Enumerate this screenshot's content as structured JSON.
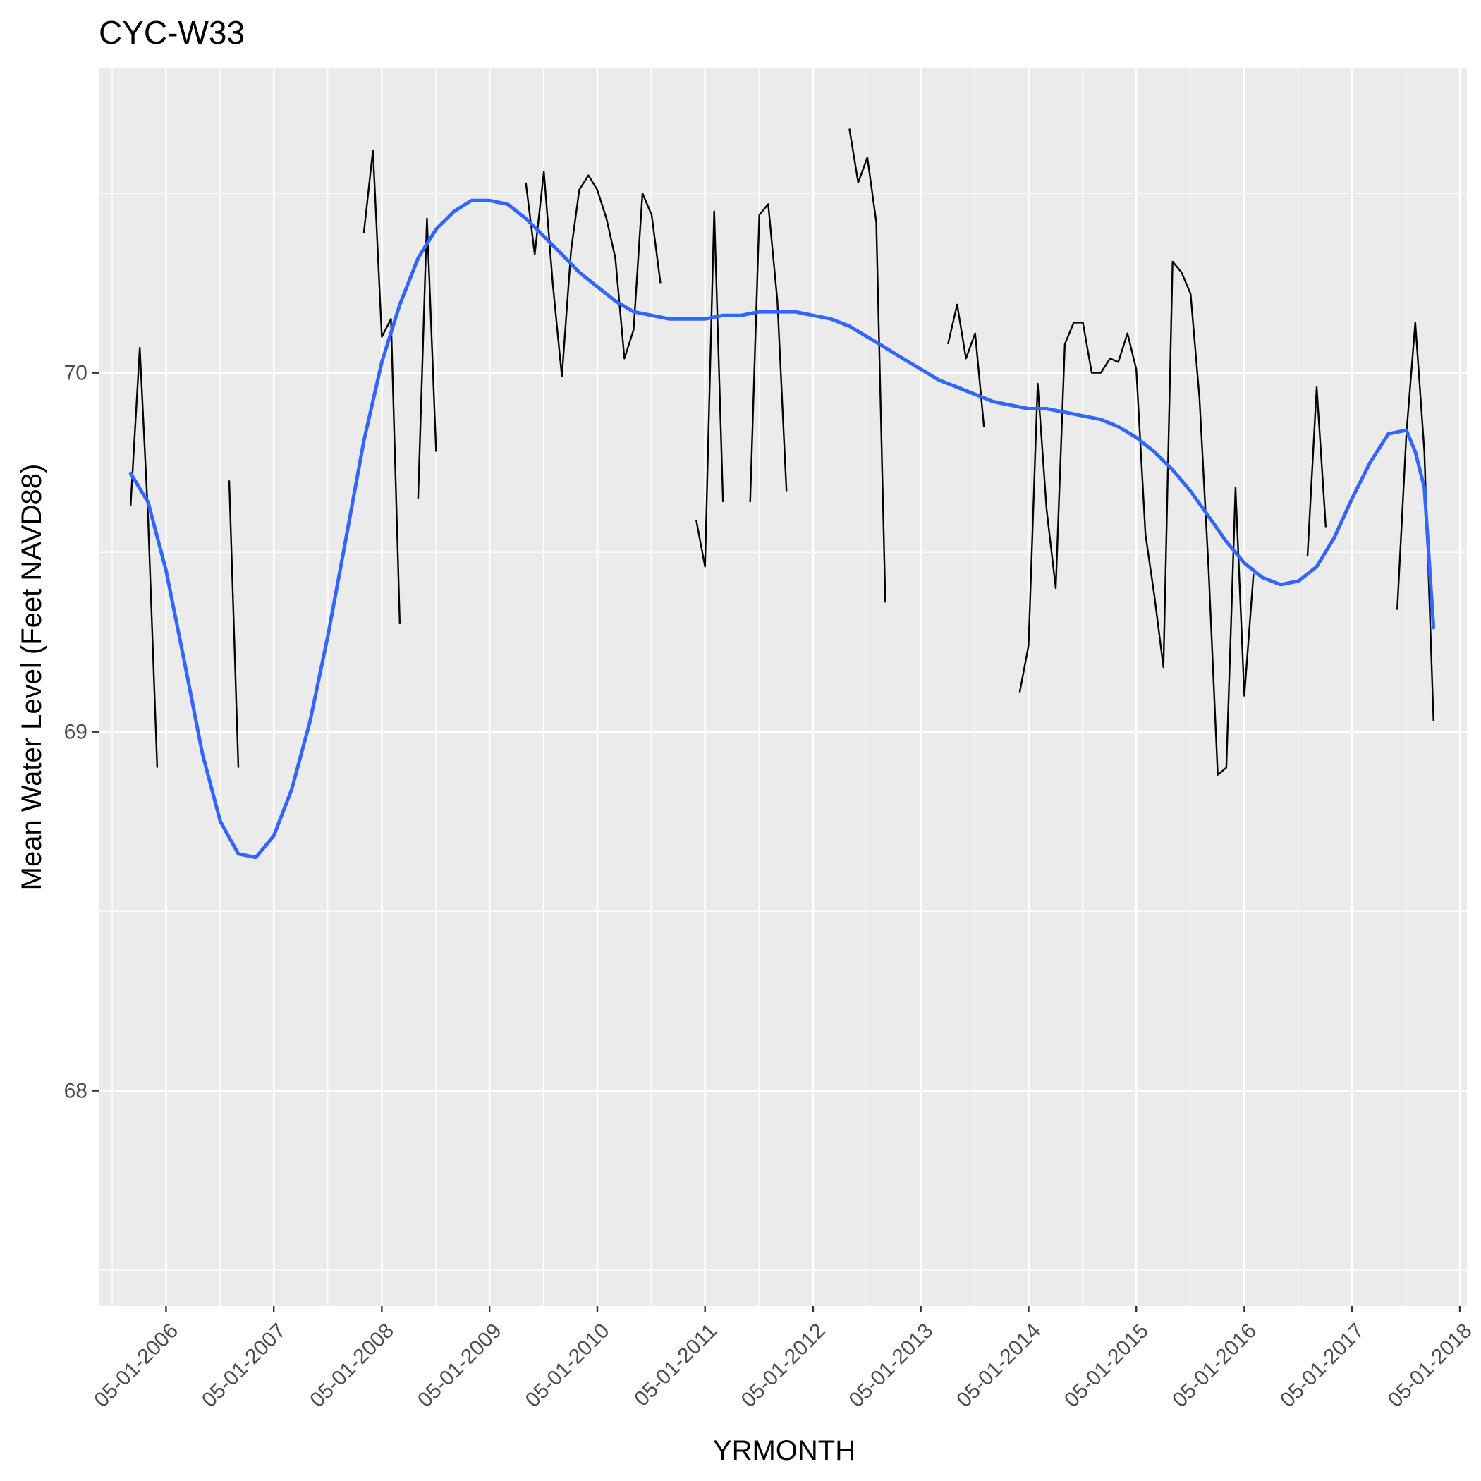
{
  "chart_data": {
    "type": "line",
    "title": "CYC-W33",
    "xlabel": "YRMONTH",
    "ylabel": "Mean Water Level (Feet NAVD88)",
    "x_ticks": [
      "05-01-2006",
      "05-01-2007",
      "05-01-2008",
      "05-01-2009",
      "05-01-2010",
      "05-01-2011",
      "05-01-2012",
      "05-01-2013",
      "05-01-2014",
      "05-01-2015",
      "05-01-2016",
      "05-01-2017",
      "05-01-2018"
    ],
    "y_ticks": [
      68,
      69,
      70
    ],
    "xlim": [
      "2005-09-15",
      "2018-05-25"
    ],
    "ylim": [
      67.4,
      70.85
    ],
    "grid": true,
    "background": "#ebebeb",
    "colors": {
      "observed": "#000000",
      "smooth": "#3366ff"
    },
    "series": [
      {
        "role": "observed",
        "segments": [
          [
            [
              "2006-01-01",
              69.63
            ],
            [
              "2006-02-01",
              70.07
            ],
            [
              "2006-03-01",
              69.6
            ],
            [
              "2006-04-01",
              68.9
            ]
          ],
          [
            [
              "2006-12-01",
              69.7
            ],
            [
              "2007-01-01",
              68.9
            ]
          ],
          [
            [
              "2008-03-01",
              70.39
            ],
            [
              "2008-04-01",
              70.62
            ],
            [
              "2008-05-01",
              70.1
            ],
            [
              "2008-06-01",
              70.15
            ],
            [
              "2008-07-01",
              69.3
            ]
          ],
          [
            [
              "2008-09-01",
              69.65
            ],
            [
              "2008-10-01",
              70.43
            ],
            [
              "2008-11-01",
              69.78
            ]
          ],
          [
            [
              "2009-09-01",
              70.53
            ],
            [
              "2009-10-01",
              70.33
            ],
            [
              "2009-11-01",
              70.56
            ],
            [
              "2009-12-01",
              70.25
            ],
            [
              "2010-01-01",
              69.99
            ],
            [
              "2010-02-01",
              70.34
            ],
            [
              "2010-03-01",
              70.51
            ],
            [
              "2010-04-01",
              70.55
            ],
            [
              "2010-05-01",
              70.51
            ],
            [
              "2010-06-01",
              70.43
            ],
            [
              "2010-07-01",
              70.32
            ],
            [
              "2010-08-01",
              70.04
            ],
            [
              "2010-09-01",
              70.12
            ],
            [
              "2010-10-01",
              70.5
            ],
            [
              "2010-11-01",
              70.44
            ],
            [
              "2010-12-01",
              70.25
            ]
          ],
          [
            [
              "2011-04-01",
              69.59
            ],
            [
              "2011-05-01",
              69.46
            ],
            [
              "2011-06-01",
              70.45
            ],
            [
              "2011-07-01",
              69.64
            ]
          ],
          [
            [
              "2011-10-01",
              69.64
            ],
            [
              "2011-11-01",
              70.44
            ],
            [
              "2011-12-01",
              70.47
            ],
            [
              "2012-01-01",
              70.2
            ],
            [
              "2012-02-01",
              69.67
            ]
          ],
          [
            [
              "2012-09-01",
              70.68
            ],
            [
              "2012-10-01",
              70.53
            ],
            [
              "2012-11-01",
              70.6
            ],
            [
              "2012-12-01",
              70.42
            ],
            [
              "2013-01-01",
              69.36
            ]
          ],
          [
            [
              "2013-08-01",
              70.08
            ],
            [
              "2013-09-01",
              70.19
            ],
            [
              "2013-10-01",
              70.04
            ],
            [
              "2013-11-01",
              70.11
            ],
            [
              "2013-12-01",
              69.85
            ]
          ],
          [
            [
              "2014-04-01",
              69.11
            ],
            [
              "2014-05-01",
              69.24
            ],
            [
              "2014-06-01",
              69.97
            ],
            [
              "2014-07-01",
              69.62
            ],
            [
              "2014-08-01",
              69.4
            ],
            [
              "2014-09-01",
              70.08
            ],
            [
              "2014-10-01",
              70.14
            ],
            [
              "2014-11-01",
              70.14
            ],
            [
              "2014-12-01",
              70.0
            ],
            [
              "2015-01-01",
              70.0
            ],
            [
              "2015-02-01",
              70.04
            ],
            [
              "2015-03-01",
              70.03
            ],
            [
              "2015-04-01",
              70.11
            ],
            [
              "2015-05-01",
              70.01
            ],
            [
              "2015-06-01",
              69.55
            ],
            [
              "2015-07-01",
              69.38
            ],
            [
              "2015-08-01",
              69.18
            ],
            [
              "2015-09-01",
              70.31
            ],
            [
              "2015-10-01",
              70.28
            ],
            [
              "2015-11-01",
              70.22
            ],
            [
              "2015-12-01",
              69.93
            ],
            [
              "2016-01-01",
              69.45
            ],
            [
              "2016-02-01",
              68.88
            ],
            [
              "2016-03-01",
              68.9
            ],
            [
              "2016-04-01",
              69.68
            ],
            [
              "2016-05-01",
              69.1
            ],
            [
              "2016-06-01",
              69.44
            ]
          ],
          [
            [
              "2016-12-01",
              69.49
            ],
            [
              "2017-01-01",
              69.96
            ],
            [
              "2017-02-01",
              69.57
            ]
          ],
          [
            [
              "2017-10-01",
              69.34
            ],
            [
              "2017-11-01",
              69.83
            ],
            [
              "2017-12-01",
              70.14
            ],
            [
              "2018-01-01",
              69.78
            ],
            [
              "2018-02-01",
              69.03
            ]
          ]
        ]
      },
      {
        "role": "smooth",
        "points": [
          [
            "2006-01-01",
            69.72
          ],
          [
            "2006-03-01",
            69.64
          ],
          [
            "2006-05-01",
            69.45
          ],
          [
            "2006-07-01",
            69.2
          ],
          [
            "2006-09-01",
            68.94
          ],
          [
            "2006-11-01",
            68.75
          ],
          [
            "2007-01-01",
            68.66
          ],
          [
            "2007-03-01",
            68.65
          ],
          [
            "2007-05-01",
            68.71
          ],
          [
            "2007-07-01",
            68.84
          ],
          [
            "2007-09-01",
            69.03
          ],
          [
            "2007-11-01",
            69.27
          ],
          [
            "2008-01-01",
            69.54
          ],
          [
            "2008-03-01",
            69.81
          ],
          [
            "2008-05-01",
            70.03
          ],
          [
            "2008-07-01",
            70.19
          ],
          [
            "2008-09-01",
            70.32
          ],
          [
            "2008-11-01",
            70.4
          ],
          [
            "2009-01-01",
            70.45
          ],
          [
            "2009-03-01",
            70.48
          ],
          [
            "2009-05-01",
            70.48
          ],
          [
            "2009-07-01",
            70.47
          ],
          [
            "2009-09-01",
            70.43
          ],
          [
            "2009-11-01",
            70.38
          ],
          [
            "2010-01-01",
            70.33
          ],
          [
            "2010-03-01",
            70.28
          ],
          [
            "2010-05-01",
            70.24
          ],
          [
            "2010-07-01",
            70.2
          ],
          [
            "2010-09-01",
            70.17
          ],
          [
            "2010-11-01",
            70.16
          ],
          [
            "2011-01-01",
            70.15
          ],
          [
            "2011-03-01",
            70.15
          ],
          [
            "2011-05-01",
            70.15
          ],
          [
            "2011-07-01",
            70.16
          ],
          [
            "2011-09-01",
            70.16
          ],
          [
            "2011-11-01",
            70.17
          ],
          [
            "2012-01-01",
            70.17
          ],
          [
            "2012-03-01",
            70.17
          ],
          [
            "2012-05-01",
            70.16
          ],
          [
            "2012-07-01",
            70.15
          ],
          [
            "2012-09-01",
            70.13
          ],
          [
            "2012-11-01",
            70.1
          ],
          [
            "2013-01-01",
            70.07
          ],
          [
            "2013-03-01",
            70.04
          ],
          [
            "2013-05-01",
            70.01
          ],
          [
            "2013-07-01",
            69.98
          ],
          [
            "2013-09-01",
            69.96
          ],
          [
            "2013-11-01",
            69.94
          ],
          [
            "2014-01-01",
            69.92
          ],
          [
            "2014-03-01",
            69.91
          ],
          [
            "2014-05-01",
            69.9
          ],
          [
            "2014-07-01",
            69.9
          ],
          [
            "2014-09-01",
            69.89
          ],
          [
            "2014-11-01",
            69.88
          ],
          [
            "2015-01-01",
            69.87
          ],
          [
            "2015-03-01",
            69.85
          ],
          [
            "2015-05-01",
            69.82
          ],
          [
            "2015-07-01",
            69.78
          ],
          [
            "2015-09-01",
            69.73
          ],
          [
            "2015-11-01",
            69.67
          ],
          [
            "2016-01-01",
            69.6
          ],
          [
            "2016-03-01",
            69.53
          ],
          [
            "2016-05-01",
            69.47
          ],
          [
            "2016-07-01",
            69.43
          ],
          [
            "2016-09-01",
            69.41
          ],
          [
            "2016-11-01",
            69.42
          ],
          [
            "2017-01-01",
            69.46
          ],
          [
            "2017-03-01",
            69.54
          ],
          [
            "2017-05-01",
            69.65
          ],
          [
            "2017-07-01",
            69.75
          ],
          [
            "2017-09-01",
            69.83
          ],
          [
            "2017-11-01",
            69.84
          ],
          [
            "2017-12-01",
            69.78
          ],
          [
            "2018-01-01",
            69.68
          ],
          [
            "2018-02-01",
            69.29
          ]
        ]
      }
    ]
  }
}
